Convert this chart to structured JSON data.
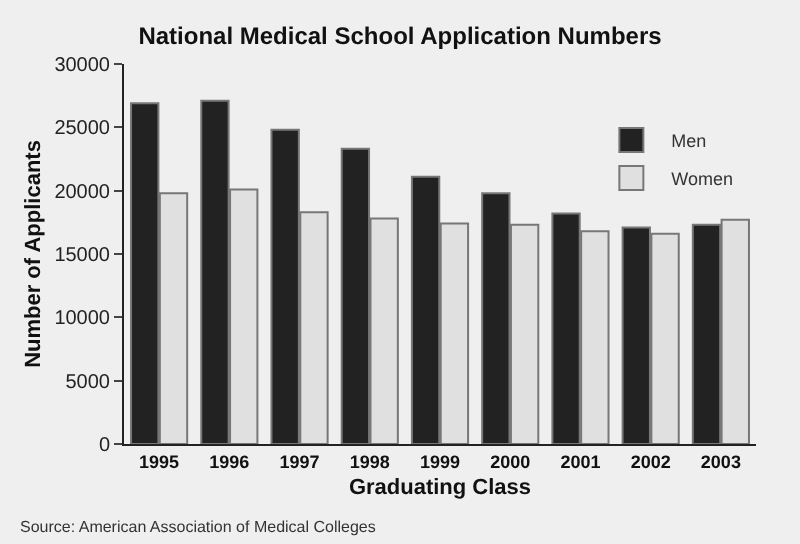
{
  "chart_data": {
    "type": "bar",
    "title": "National Medical School Application Numbers",
    "xlabel": "Graduating Class",
    "ylabel": "Number of Applicants",
    "categories": [
      "1995",
      "1996",
      "1997",
      "1998",
      "1999",
      "2000",
      "2001",
      "2002",
      "2003"
    ],
    "series": [
      {
        "name": "Men",
        "color": "#222222",
        "values": [
          26900,
          27100,
          24800,
          23300,
          21100,
          19800,
          18200,
          17100,
          17300
        ]
      },
      {
        "name": "Women",
        "color": "#e0e0e0",
        "values": [
          19800,
          20100,
          18300,
          17800,
          17400,
          17300,
          16800,
          16600,
          17700
        ]
      }
    ],
    "ylim": [
      0,
      30000
    ],
    "yticks": [
      0,
      5000,
      10000,
      15000,
      20000,
      25000,
      30000
    ],
    "grid": false,
    "legend": "right",
    "annotations": [
      "Source: American Association of Medical Colleges"
    ]
  }
}
